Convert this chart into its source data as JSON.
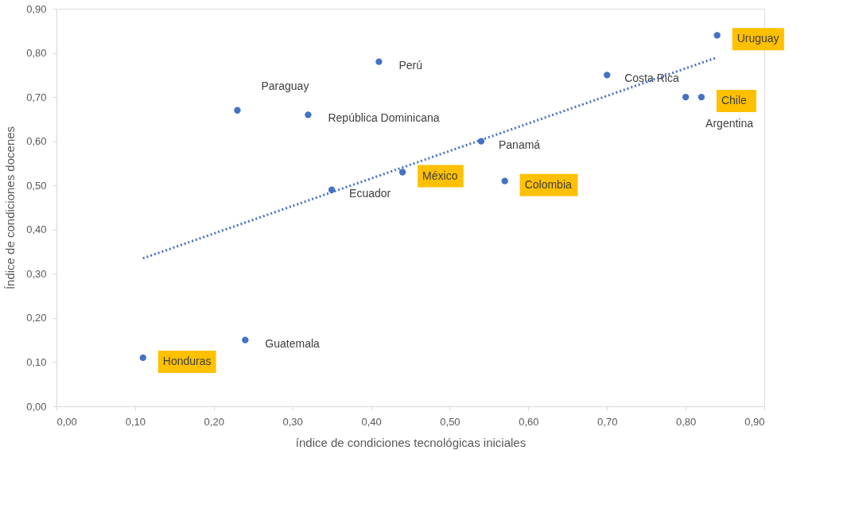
{
  "chart_data": {
    "type": "scatter",
    "xlabel": "índice de condiciones tecnológicas iniciales",
    "ylabel": "Índice de condiciones docenes",
    "xlim": [
      0,
      0.9
    ],
    "ylim": [
      0,
      0.9
    ],
    "xticks": [
      {
        "value": 0,
        "label": "0,00"
      },
      {
        "value": 0.1,
        "label": "0,10"
      },
      {
        "value": 0.2,
        "label": "0,20"
      },
      {
        "value": 0.3,
        "label": "0,30"
      },
      {
        "value": 0.4,
        "label": "0,40"
      },
      {
        "value": 0.5,
        "label": "0,50"
      },
      {
        "value": 0.6,
        "label": "0,60"
      },
      {
        "value": 0.7,
        "label": "0,70"
      },
      {
        "value": 0.8,
        "label": "0,80"
      },
      {
        "value": 0.9,
        "label": "0,90"
      }
    ],
    "yticks": [
      {
        "value": 0,
        "label": "0,00"
      },
      {
        "value": 0.1,
        "label": "0,10"
      },
      {
        "value": 0.2,
        "label": "0,20"
      },
      {
        "value": 0.3,
        "label": "0,30"
      },
      {
        "value": 0.4,
        "label": "0,40"
      },
      {
        "value": 0.5,
        "label": "0,50"
      },
      {
        "value": 0.6,
        "label": "0,60"
      },
      {
        "value": 0.7,
        "label": "0,70"
      },
      {
        "value": 0.8,
        "label": "0,80"
      },
      {
        "value": 0.9,
        "label": "0,90"
      }
    ],
    "grid": false,
    "series": [
      {
        "color": "#4472c4",
        "marker": "circle",
        "x": [
          0.24,
          0.23,
          0.32,
          0.41,
          0.35,
          0.54,
          0.7,
          0.8
        ],
        "values": [
          0.15,
          0.67,
          0.66,
          0.78,
          0.49,
          0.6,
          0.75,
          0.7
        ],
        "value_labels": [
          "Guatemala",
          "Paraguay",
          "República Dominicana",
          "Perú",
          "Ecuador",
          "Panamá",
          "Costa Rica",
          "Argentina"
        ]
      },
      {
        "color": "#4472c4",
        "marker": "circle",
        "x": [
          0.11,
          0.44,
          0.57,
          0.82,
          0.84
        ],
        "values": [
          0.11,
          0.53,
          0.51,
          0.7,
          0.84
        ],
        "value_labels": [
          "Honduras",
          "México",
          "Colombia",
          "Chile",
          "Uruguay"
        ]
      },
      {
        "type": "line",
        "color": "#4472c4",
        "line_style": "dotted",
        "x": [
          0.11,
          0.84
        ],
        "values": [
          0.335,
          0.79
        ]
      }
    ]
  }
}
